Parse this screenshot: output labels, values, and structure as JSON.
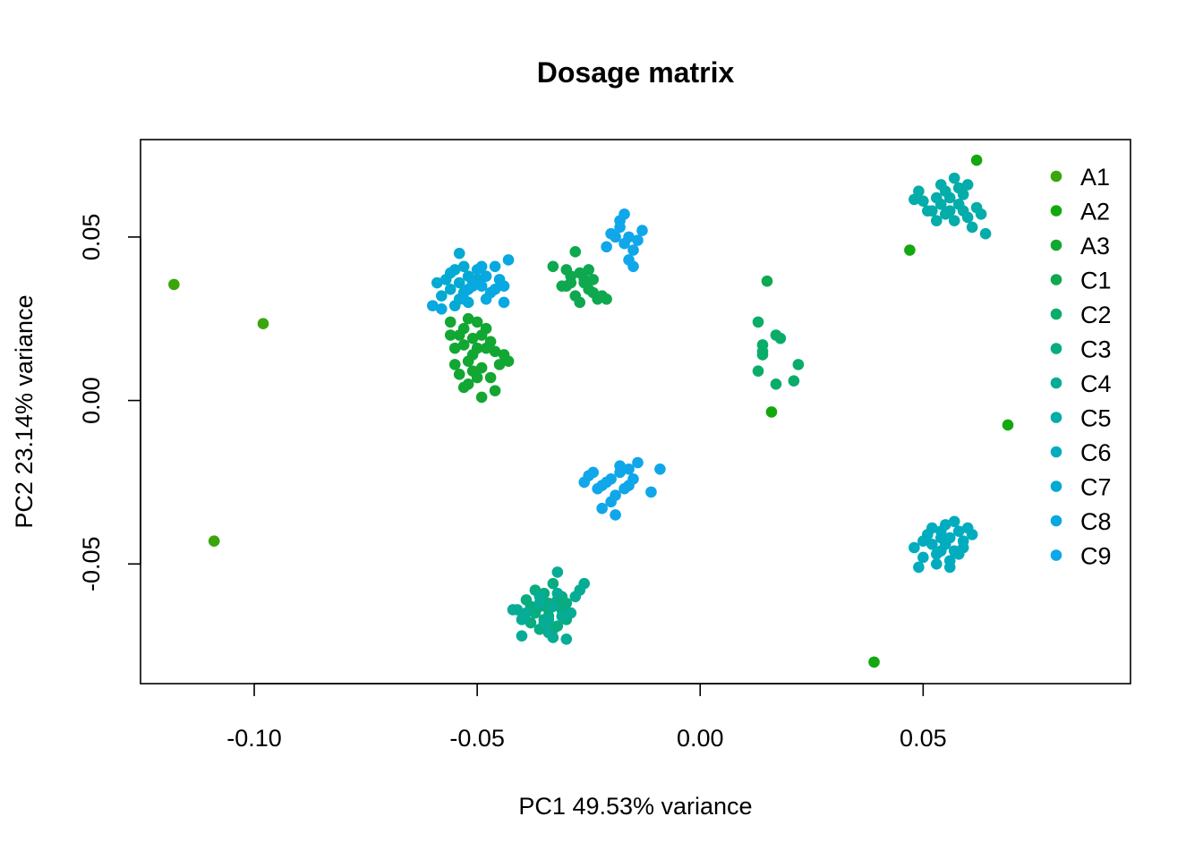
{
  "chart_data": {
    "type": "scatter",
    "title": "Dosage matrix",
    "xlabel": "PC1  49.53% variance",
    "ylabel": "PC2  23.14% variance",
    "xlim": [
      -0.1255,
      0.0965
    ],
    "ylim": [
      -0.0866,
      0.0798
    ],
    "xticks": [
      -0.1,
      -0.05,
      0.0,
      0.05
    ],
    "xtick_labels": [
      "-0.10",
      "-0.05",
      "0.00",
      "0.05"
    ],
    "yticks": [
      -0.05,
      0.0,
      0.05
    ],
    "ytick_labels": [
      "-0.05",
      "0.00",
      "0.05"
    ],
    "legend_position": "top-right",
    "grid": false,
    "series": [
      {
        "name": "A1",
        "color": "#3aa60c",
        "points": [
          [
            -0.118,
            0.0355
          ],
          [
            -0.098,
            0.0235
          ],
          [
            -0.109,
            -0.043
          ]
        ]
      },
      {
        "name": "A2",
        "color": "#12a80e",
        "points": [
          [
            0.016,
            -0.0035
          ],
          [
            0.069,
            -0.0075
          ],
          [
            0.039,
            -0.08
          ],
          [
            0.047,
            0.046
          ],
          [
            0.062,
            0.0735
          ]
        ]
      },
      {
        "name": "A3",
        "color": "#12a632",
        "points": [
          [
            -0.053,
            0.022
          ],
          [
            -0.051,
            0.019
          ],
          [
            -0.055,
            0.016
          ],
          [
            -0.052,
            0.012
          ],
          [
            -0.049,
            0.01
          ],
          [
            -0.054,
            0.008
          ],
          [
            -0.05,
            0.024
          ],
          [
            -0.047,
            0.018
          ],
          [
            -0.056,
            0.024
          ],
          [
            -0.053,
            0.004
          ],
          [
            -0.049,
            0.001
          ],
          [
            -0.046,
            0.003
          ],
          [
            -0.051,
            0.014
          ],
          [
            -0.048,
            0.016
          ],
          [
            -0.054,
            0.02
          ],
          [
            -0.05,
            0.007
          ],
          [
            -0.045,
            0.011
          ],
          [
            -0.052,
            0.025
          ],
          [
            -0.047,
            0.007
          ],
          [
            -0.055,
            0.011
          ],
          [
            -0.048,
            0.022
          ],
          [
            -0.05,
            0.016
          ],
          [
            -0.053,
            0.017
          ],
          [
            -0.044,
            0.014
          ],
          [
            -0.052,
            0.005
          ],
          [
            -0.056,
            0.02
          ],
          [
            -0.049,
            0.02
          ],
          [
            -0.046,
            0.015
          ],
          [
            -0.051,
            0.009
          ],
          [
            -0.043,
            0.012
          ]
        ]
      },
      {
        "name": "C1",
        "color": "#0ea84f",
        "points": [
          [
            -0.029,
            0.036
          ],
          [
            -0.027,
            0.039
          ],
          [
            -0.025,
            0.034
          ],
          [
            -0.028,
            0.032
          ],
          [
            -0.03,
            0.035
          ],
          [
            -0.026,
            0.037
          ],
          [
            -0.024,
            0.033
          ],
          [
            -0.023,
            0.031
          ],
          [
            -0.028,
            0.0455
          ],
          [
            -0.033,
            0.041
          ],
          [
            -0.031,
            0.035
          ],
          [
            -0.025,
            0.04
          ],
          [
            -0.022,
            0.032
          ],
          [
            -0.027,
            0.03
          ],
          [
            -0.024,
            0.037
          ],
          [
            -0.029,
            0.038
          ],
          [
            -0.021,
            0.031
          ],
          [
            -0.026,
            0.036
          ],
          [
            0.015,
            0.0365
          ],
          [
            -0.03,
            0.04
          ]
        ]
      },
      {
        "name": "C2",
        "color": "#0aac6a",
        "points": [
          [
            0.013,
            0.024
          ],
          [
            0.014,
            0.017
          ],
          [
            0.013,
            0.009
          ],
          [
            0.017,
            0.02
          ],
          [
            0.014,
            0.015
          ],
          [
            0.018,
            0.019
          ],
          [
            0.022,
            0.011
          ],
          [
            0.021,
            0.006
          ],
          [
            0.017,
            0.005
          ],
          [
            0.014,
            0.014
          ]
        ]
      },
      {
        "name": "C3",
        "color": "#08ac80",
        "points": [
          [
            -0.036,
            -0.063
          ],
          [
            -0.034,
            -0.066
          ],
          [
            -0.032,
            -0.061
          ],
          [
            -0.038,
            -0.068
          ],
          [
            -0.033,
            -0.07
          ],
          [
            -0.035,
            -0.059
          ],
          [
            -0.031,
            -0.064
          ],
          [
            -0.037,
            -0.065
          ],
          [
            -0.034,
            -0.062
          ],
          [
            -0.03,
            -0.067
          ],
          [
            -0.036,
            -0.07
          ],
          [
            -0.039,
            -0.061
          ],
          [
            -0.033,
            -0.056
          ],
          [
            -0.031,
            -0.06
          ],
          [
            -0.035,
            -0.067
          ],
          [
            -0.032,
            -0.069
          ],
          [
            -0.037,
            -0.058
          ],
          [
            -0.034,
            -0.064
          ],
          [
            -0.03,
            -0.062
          ],
          [
            -0.038,
            -0.063
          ]
        ]
      },
      {
        "name": "C4",
        "color": "#06ac95",
        "points": [
          [
            -0.036,
            -0.06
          ],
          [
            -0.033,
            -0.063
          ],
          [
            -0.031,
            -0.066
          ],
          [
            -0.039,
            -0.065
          ],
          [
            -0.035,
            -0.068
          ],
          [
            -0.032,
            -0.059
          ],
          [
            -0.028,
            -0.06
          ],
          [
            -0.04,
            -0.067
          ],
          [
            -0.034,
            -0.071
          ],
          [
            -0.029,
            -0.065
          ],
          [
            -0.03,
            -0.073
          ],
          [
            -0.041,
            -0.064
          ],
          [
            -0.033,
            -0.0725
          ],
          [
            -0.027,
            -0.058
          ],
          [
            -0.026,
            -0.056
          ],
          [
            -0.04,
            -0.072
          ],
          [
            -0.042,
            -0.064
          ],
          [
            -0.036,
            -0.062
          ],
          [
            -0.032,
            -0.0525
          ],
          [
            -0.034,
            -0.067
          ]
        ]
      },
      {
        "name": "C5",
        "color": "#04acaa",
        "points": [
          [
            0.054,
            0.066
          ],
          [
            0.056,
            0.062
          ],
          [
            0.058,
            0.06
          ],
          [
            0.052,
            0.058
          ],
          [
            0.06,
            0.056
          ],
          [
            0.055,
            0.064
          ],
          [
            0.05,
            0.061
          ],
          [
            0.062,
            0.059
          ],
          [
            0.057,
            0.068
          ],
          [
            0.053,
            0.055
          ],
          [
            0.059,
            0.063
          ],
          [
            0.061,
            0.053
          ],
          [
            0.049,
            0.064
          ],
          [
            0.063,
            0.057
          ],
          [
            0.056,
            0.058
          ],
          [
            0.051,
            0.058
          ],
          [
            0.058,
            0.065
          ],
          [
            0.054,
            0.06
          ],
          [
            0.06,
            0.066
          ],
          [
            0.064,
            0.051
          ],
          [
            0.048,
            0.0615
          ],
          [
            0.057,
            0.055
          ],
          [
            0.053,
            0.062
          ],
          [
            0.059,
            0.058
          ],
          [
            0.055,
            0.057
          ]
        ]
      },
      {
        "name": "C6",
        "color": "#02acbf",
        "points": [
          [
            0.054,
            -0.046
          ],
          [
            0.056,
            -0.042
          ],
          [
            0.052,
            -0.044
          ],
          [
            0.058,
            -0.04
          ],
          [
            0.05,
            -0.048
          ],
          [
            0.055,
            -0.038
          ],
          [
            0.057,
            -0.046
          ],
          [
            0.053,
            -0.05
          ],
          [
            0.059,
            -0.043
          ],
          [
            0.051,
            -0.041
          ],
          [
            0.056,
            -0.049
          ],
          [
            0.06,
            -0.039
          ],
          [
            0.048,
            -0.045
          ],
          [
            0.054,
            -0.042
          ],
          [
            0.058,
            -0.047
          ],
          [
            0.052,
            -0.039
          ],
          [
            0.061,
            -0.041
          ],
          [
            0.049,
            -0.051
          ],
          [
            0.055,
            -0.044
          ],
          [
            0.057,
            -0.037
          ],
          [
            0.053,
            -0.047
          ],
          [
            0.05,
            -0.043
          ],
          [
            0.059,
            -0.045
          ],
          [
            0.056,
            -0.051
          ],
          [
            0.054,
            -0.04
          ]
        ]
      },
      {
        "name": "C7",
        "color": "#04aad2",
        "points": [
          [
            -0.054,
            0.036
          ],
          [
            -0.056,
            0.034
          ],
          [
            -0.052,
            0.038
          ],
          [
            -0.055,
            0.04
          ],
          [
            -0.053,
            0.033
          ],
          [
            -0.057,
            0.037
          ],
          [
            -0.051,
            0.035
          ],
          [
            -0.054,
            0.031
          ],
          [
            -0.058,
            0.032
          ],
          [
            -0.05,
            0.037
          ],
          [
            -0.055,
            0.029
          ],
          [
            -0.053,
            0.041
          ],
          [
            -0.059,
            0.036
          ],
          [
            -0.052,
            0.03
          ],
          [
            -0.056,
            0.039
          ],
          [
            -0.054,
            0.045
          ]
        ]
      },
      {
        "name": "C8",
        "color": "#08a8e0",
        "points": [
          [
            -0.05,
            0.04
          ],
          [
            -0.048,
            0.038
          ],
          [
            -0.046,
            0.041
          ],
          [
            -0.049,
            0.035
          ],
          [
            -0.047,
            0.033
          ],
          [
            -0.051,
            0.036
          ],
          [
            -0.045,
            0.037
          ],
          [
            -0.052,
            0.034
          ],
          [
            -0.048,
            0.031
          ],
          [
            -0.044,
            0.035
          ],
          [
            -0.043,
            0.043
          ],
          [
            -0.046,
            0.034
          ],
          [
            -0.049,
            0.041
          ],
          [
            -0.058,
            0.028
          ],
          [
            -0.06,
            0.029
          ],
          [
            -0.044,
            0.03
          ],
          [
            -0.053,
            0.031
          ]
        ]
      },
      {
        "name": "C9",
        "color": "#10a6ea",
        "points": [
          [
            -0.02,
            -0.024
          ],
          [
            -0.018,
            -0.022
          ],
          [
            -0.022,
            -0.026
          ],
          [
            -0.017,
            -0.027
          ],
          [
            -0.025,
            -0.023
          ],
          [
            -0.019,
            -0.029
          ],
          [
            -0.016,
            -0.021
          ],
          [
            -0.021,
            -0.025
          ],
          [
            -0.023,
            -0.027
          ],
          [
            -0.015,
            -0.024
          ],
          [
            -0.026,
            -0.025
          ],
          [
            -0.018,
            -0.02
          ],
          [
            -0.02,
            -0.031
          ],
          [
            -0.014,
            -0.019
          ],
          [
            -0.022,
            -0.033
          ],
          [
            -0.009,
            -0.021
          ],
          [
            -0.016,
            -0.026
          ],
          [
            -0.011,
            -0.028
          ],
          [
            -0.019,
            -0.035
          ],
          [
            -0.024,
            -0.022
          ],
          [
            -0.017,
            0.048
          ],
          [
            -0.019,
            0.05
          ],
          [
            -0.015,
            0.046
          ],
          [
            -0.018,
            0.053
          ],
          [
            -0.016,
            0.043
          ],
          [
            -0.02,
            0.051
          ],
          [
            -0.014,
            0.049
          ],
          [
            -0.017,
            0.057
          ],
          [
            -0.021,
            0.047
          ],
          [
            -0.013,
            0.052
          ],
          [
            -0.018,
            0.055
          ],
          [
            -0.015,
            0.041
          ],
          [
            -0.016,
            0.05
          ]
        ]
      }
    ]
  }
}
